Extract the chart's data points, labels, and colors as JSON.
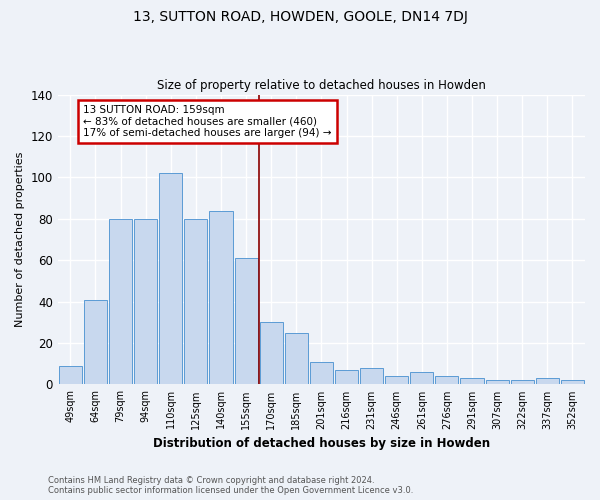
{
  "title": "13, SUTTON ROAD, HOWDEN, GOOLE, DN14 7DJ",
  "subtitle": "Size of property relative to detached houses in Howden",
  "xlabel": "Distribution of detached houses by size in Howden",
  "ylabel": "Number of detached properties",
  "categories": [
    "49sqm",
    "64sqm",
    "79sqm",
    "94sqm",
    "110sqm",
    "125sqm",
    "140sqm",
    "155sqm",
    "170sqm",
    "185sqm",
    "201sqm",
    "216sqm",
    "231sqm",
    "246sqm",
    "261sqm",
    "276sqm",
    "291sqm",
    "307sqm",
    "322sqm",
    "337sqm",
    "352sqm"
  ],
  "values": [
    9,
    41,
    80,
    80,
    102,
    80,
    84,
    61,
    30,
    25,
    11,
    7,
    8,
    4,
    6,
    4,
    3,
    2,
    2,
    3,
    2
  ],
  "bar_color": "#c8d8ee",
  "bar_edge_color": "#5b9bd5",
  "vline_color": "#8b0000",
  "annotation_text": "13 SUTTON ROAD: 159sqm\n← 83% of detached houses are smaller (460)\n17% of semi-detached houses are larger (94) →",
  "annotation_box_color": "white",
  "annotation_box_edge_color": "#cc0000",
  "ylim": [
    0,
    140
  ],
  "yticks": [
    0,
    20,
    40,
    60,
    80,
    100,
    120,
    140
  ],
  "bg_color": "#eef2f8",
  "grid_color": "white",
  "footer_line1": "Contains HM Land Registry data © Crown copyright and database right 2024.",
  "footer_line2": "Contains public sector information licensed under the Open Government Licence v3.0."
}
